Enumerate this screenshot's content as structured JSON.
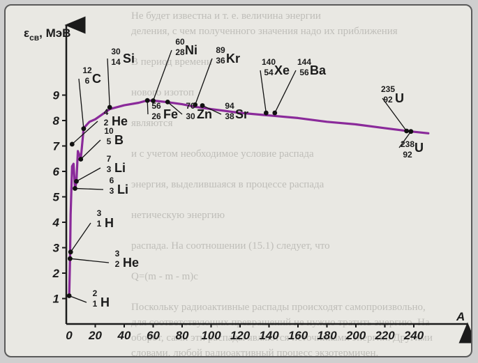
{
  "chart_data": {
    "type": "line",
    "ylabel": "ε",
    "ylabel_sub": "св",
    "ylabel_unit": ", МэВ",
    "xlabel": "A",
    "xlim": [
      0,
      260
    ],
    "ylim": [
      0,
      9.5
    ],
    "x_ticks": [
      0,
      20,
      40,
      60,
      80,
      100,
      120,
      140,
      160,
      180,
      200,
      220,
      240
    ],
    "y_ticks": [
      1,
      2,
      3,
      4,
      5,
      6,
      7,
      8,
      9
    ],
    "line_color": "#8a2a9a",
    "grid": false,
    "curve": {
      "x": [
        2,
        2.6,
        3,
        4,
        5,
        6,
        7,
        8,
        10,
        12,
        16,
        20,
        25,
        30,
        40,
        50,
        56,
        62,
        70,
        80,
        89,
        100,
        120,
        140,
        160,
        180,
        200,
        220,
        238,
        250
      ],
      "y": [
        1.11,
        2.6,
        4.3,
        6.2,
        6.3,
        5.3,
        5.6,
        6.8,
        6.5,
        7.7,
        7.95,
        8.05,
        8.25,
        8.45,
        8.6,
        8.7,
        8.79,
        8.77,
        8.72,
        8.64,
        8.54,
        8.45,
        8.3,
        8.2,
        8.1,
        7.95,
        7.85,
        7.7,
        7.57,
        7.5
      ]
    },
    "points": [
      {
        "sym": "H",
        "a": "2",
        "z": "1",
        "x": 2,
        "y": 1.11
      },
      {
        "sym": "He",
        "a": "3",
        "z": "2",
        "x": 2.6,
        "y": 2.57
      },
      {
        "sym": "H",
        "a": "3",
        "z": "1",
        "x": 3,
        "y": 2.83
      },
      {
        "sym": "Li",
        "a": "6",
        "z": "3",
        "x": 6,
        "y": 5.33
      },
      {
        "sym": "Li",
        "a": "7",
        "z": "3",
        "x": 7,
        "y": 5.61
      },
      {
        "sym": "B",
        "a": "10",
        "z": "5",
        "x": 10,
        "y": 6.48
      },
      {
        "sym": "He",
        "a": "4",
        "z": "2",
        "x": 4,
        "y": 7.07
      },
      {
        "sym": "C",
        "a": "12",
        "z": "6",
        "x": 12,
        "y": 7.68
      },
      {
        "sym": "Si",
        "a": "30",
        "z": "14",
        "x": 30,
        "y": 8.52
      },
      {
        "sym": "Ni",
        "a": "60",
        "z": "28",
        "x": 60,
        "y": 8.78
      },
      {
        "sym": "Fe",
        "a": "56",
        "z": "26",
        "x": 56,
        "y": 8.79
      },
      {
        "sym": "Zn",
        "a": "70",
        "z": "30",
        "x": 70,
        "y": 8.73
      },
      {
        "sym": "Kr",
        "a": "89",
        "z": "36",
        "x": 89,
        "y": 8.62
      },
      {
        "sym": "Sr",
        "a": "94",
        "z": "38",
        "x": 94,
        "y": 8.59
      },
      {
        "sym": "Xe",
        "a": "140",
        "z": "54",
        "x": 138,
        "y": 8.3
      },
      {
        "sym": "Ba",
        "a": "144",
        "z": "56",
        "x": 144,
        "y": 8.3
      },
      {
        "sym": "U",
        "a": "235",
        "z": "92",
        "x": 235,
        "y": 7.59
      },
      {
        "sym": "U",
        "a": "238",
        "z": "92",
        "x": 238,
        "y": 7.57
      }
    ]
  },
  "background_text": "Не будет известна и т. е. величина энергии\nделения, с чем полученного значения надо их приближения\n\nВ период времени\n\nнового изотоп\n\nявляются\n\nи с учетом необходимое условие распада\n\nэнергия, выделившаяся в процессе распада\n\nнетическую энергию\n\nраспада. На соотношении (15.1) следует, что\n\nQ=(m - m - m)c\n\nПоскольку радиоактивные распады происходят самопроизвольно,\nдля соответствующих превращений не нужно тратить энергию. На\nоборот, сами эти распады являются источниками энергии. Другими\nсловами, любой радиоактивный процесс экзотермичен.\nИзвестны частицы на уровне выраженный\nядро, который обнаружил испускание солями урана каких то новых"
}
